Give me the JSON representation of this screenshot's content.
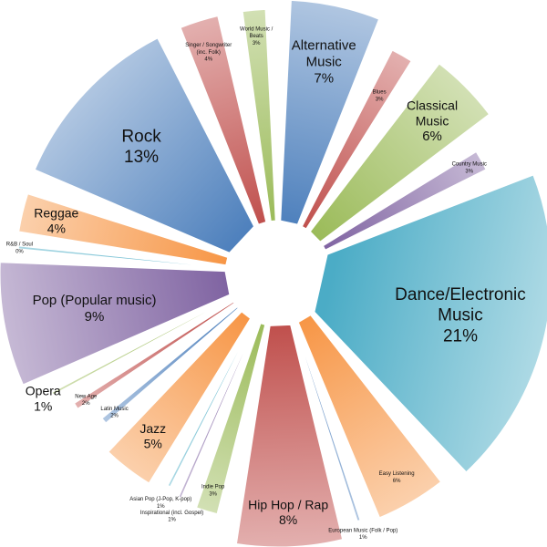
{
  "chart_data": {
    "type": "pie",
    "title": "",
    "slices": [
      {
        "label": "Alternative Music",
        "lines": [
          "Alternative",
          "Music"
        ],
        "value_label": "7%",
        "value": 7,
        "color": "#4f81bd"
      },
      {
        "label": "Blues",
        "lines": [
          "Blues"
        ],
        "value_label": "3%",
        "value": 3,
        "color": "#c0504d"
      },
      {
        "label": "Classical Music",
        "lines": [
          "Classical",
          "Music"
        ],
        "value_label": "6%",
        "value": 6,
        "color": "#9bbb59"
      },
      {
        "label": "Country Music",
        "lines": [
          "Country Music"
        ],
        "value_label": "3%",
        "value": 3,
        "color": "#8064a2"
      },
      {
        "label": "Dance/Electronic Music",
        "lines": [
          "Dance/Electronic",
          "Music"
        ],
        "value_label": "21%",
        "value": 21,
        "color": "#4bacc6"
      },
      {
        "label": "Easy Listening",
        "lines": [
          "Easy Listening"
        ],
        "value_label": "6%",
        "value": 6,
        "color": "#f79646"
      },
      {
        "label": "European Music (Folk / Pop)",
        "lines": [
          "European Music (Folk / Pop)"
        ],
        "value_label": "1%",
        "value": 1,
        "color": "#4f81bd"
      },
      {
        "label": "Hip Hop / Rap",
        "lines": [
          "Hip Hop / Rap"
        ],
        "value_label": "8%",
        "value": 8,
        "color": "#c0504d"
      },
      {
        "label": "Indie Pop",
        "lines": [
          "Indie Pop"
        ],
        "value_label": "3%",
        "value": 3,
        "color": "#9bbb59"
      },
      {
        "label": "Inspirational (incl. Gospel)",
        "lines": [
          "Inspirational (incl. Gospel)"
        ],
        "value_label": "1%",
        "value": 1,
        "color": "#8064a2"
      },
      {
        "label": "Asian Pop (J-Pop, K-pop)",
        "lines": [
          "Asian Pop (J-Pop, K-pop)"
        ],
        "value_label": "1%",
        "value": 1,
        "color": "#4bacc6"
      },
      {
        "label": "Jazz",
        "lines": [
          "Jazz"
        ],
        "value_label": "5%",
        "value": 5,
        "color": "#f79646"
      },
      {
        "label": "Latin Music",
        "lines": [
          "Latin Music"
        ],
        "value_label": "2%",
        "value": 2,
        "color": "#4f81bd"
      },
      {
        "label": "New Age",
        "lines": [
          "New Age"
        ],
        "value_label": "2%",
        "value": 2,
        "color": "#c0504d"
      },
      {
        "label": "Opera",
        "lines": [
          "Opera"
        ],
        "value_label": "1%",
        "value": 1,
        "color": "#9bbb59"
      },
      {
        "label": "Pop (Popular music)",
        "lines": [
          "Pop (Popular music)"
        ],
        "value_label": "9%",
        "value": 9,
        "color": "#8064a2"
      },
      {
        "label": "R&B / Soul",
        "lines": [
          "R&B / Soul"
        ],
        "value_label": "0%",
        "value": 0.4,
        "color": "#4bacc6"
      },
      {
        "label": "Reggae",
        "lines": [
          "Reggae"
        ],
        "value_label": "4%",
        "value": 4,
        "color": "#f79646"
      },
      {
        "label": "Rock",
        "lines": [
          "Rock"
        ],
        "value_label": "13%",
        "value": 13,
        "color": "#4f81bd"
      },
      {
        "label": "Singer / Songwriter (inc. Folk)",
        "lines": [
          "Singer / Songwriter",
          "(inc. Folk)"
        ],
        "value_label": "4%",
        "value": 4,
        "color": "#c0504d"
      },
      {
        "label": "World Music / Beats",
        "lines": [
          "World Music /",
          "Beats"
        ],
        "value_label": "3%",
        "value": 3,
        "color": "#9bbb59"
      }
    ],
    "legend": "none",
    "labels_inside": true
  }
}
